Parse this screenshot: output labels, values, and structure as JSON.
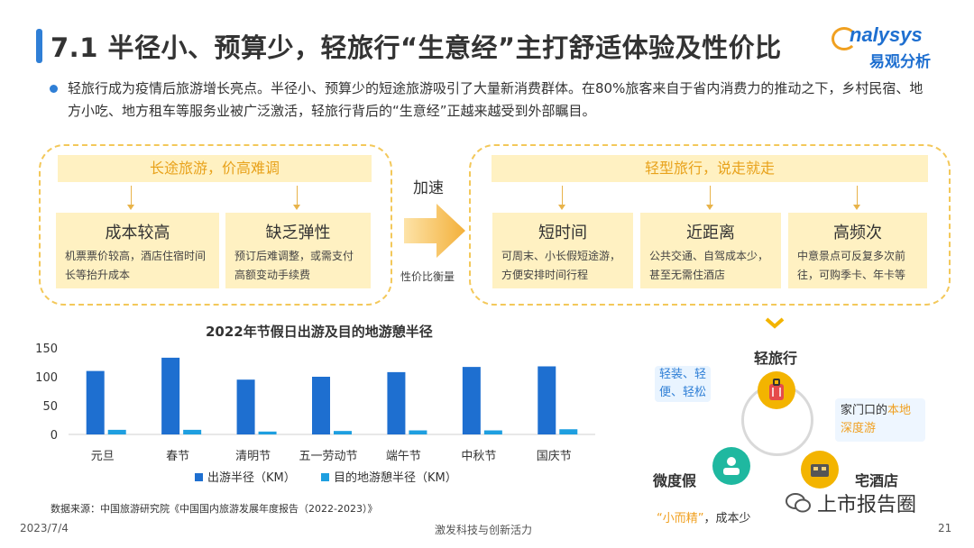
{
  "header": {
    "title": "7.1 半径小、预算少，轻旅行“生意经”主打舒适体验及性价比",
    "logo_word": "nalysys",
    "logo_cn": "易观分析"
  },
  "intro": "轻旅行成为疫情后旅游增长亮点。半径小、预算少的短途旅游吸引了大量新消费群体。在80%旅客来自于省内消费力的推动之下，乡村民宿、地方小吃、地方租车等服务业被广泛激活，轻旅行背后的“生意经”正越来越受到外部瞩目。",
  "left_panel": {
    "banner": "长途旅游，价高难调",
    "cards": [
      {
        "title": "成本较高",
        "desc": "机票票价较高，酒店住宿时间长等抬升成本"
      },
      {
        "title": "缺乏弹性",
        "desc": "预订后难调整，或需支付高额变动手续费"
      }
    ]
  },
  "middle": {
    "accel": "加速",
    "cost_label": "性价比衡量"
  },
  "right_panel": {
    "banner": "轻型旅行，说走就走",
    "cards": [
      {
        "title": "短时间",
        "desc": "可周末、小长假短途游，方便安排时间行程"
      },
      {
        "title": "近距离",
        "desc": "公共交通、自驾成本少，甚至无需住酒店"
      },
      {
        "title": "高频次",
        "desc": "中意景点可反复多次前往，可购季卡、年卡等"
      }
    ]
  },
  "chart_data": {
    "type": "bar",
    "title": "2022年节假日出游及目的地游憩半径",
    "categories": [
      "元旦",
      "春节",
      "清明节",
      "五一劳动节",
      "端午节",
      "中秋节",
      "国庆节"
    ],
    "series": [
      {
        "name": "出游半径（KM）",
        "values": [
          110,
          133,
          95,
          100,
          108,
          117,
          118
        ],
        "color": "#1e6fd0"
      },
      {
        "name": "目的地游憩半径（KM）",
        "values": [
          8,
          8,
          5,
          6,
          7,
          7,
          9
        ],
        "color": "#1e9fe0"
      }
    ],
    "yticks": [
      0,
      50,
      100,
      150
    ],
    "ylim": [
      0,
      150
    ],
    "legend": "bottom"
  },
  "source": "数据来源：中国旅游研究院《中国国内旅游发展年度报告（2022-2023）》",
  "diagram": {
    "center_label": "轻旅行",
    "tag_left_top": "轻装、轻便、轻松",
    "tag_right_pre": "家门口的",
    "tag_right_hl": "本地深度游",
    "label_left": "微度假",
    "label_right": "宅酒店",
    "bottom_hl": "“小而精”",
    "bottom_rest": "，成本少"
  },
  "footer": {
    "date": "2023/7/4",
    "slogan": "激发科技与创新活力",
    "page": "21"
  },
  "watermark": "上市报告圈",
  "colors": {
    "accent_blue": "#2f7fd6",
    "accent_yellow": "#f3c85a",
    "bar_primary": "#1e6fd0",
    "bar_secondary": "#1e9fe0"
  }
}
